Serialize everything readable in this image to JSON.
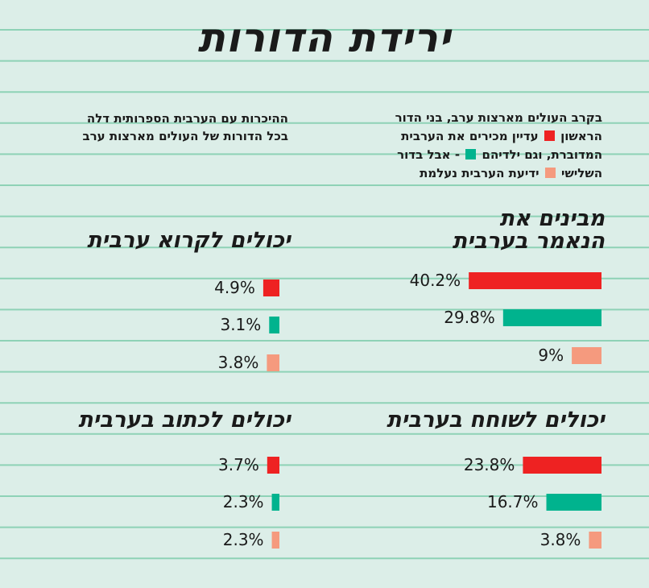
{
  "title": "ירידת הדורות",
  "description_right": {
    "line1": "בקרב העולים מארצות ערב, בני הדור",
    "line2a": "הראשון",
    "line2b": "עדיין מכירים את הערבית",
    "line3a": "המדוברת, וגם ילדיהם",
    "line3b": "- אבל בדור",
    "line4a": "השלישי",
    "line4b": "ידיעת הערבית נעלמת"
  },
  "description_left": {
    "line1": "ההיכרות עם הערבית הספרותית דלה",
    "line2": "בכל הדורות של העולים מארצות ערב"
  },
  "colors": {
    "background": "#dceee8",
    "gridline": "#8ed2b6",
    "first_generation": "#ee2222",
    "second_generation": "#00b38e",
    "third_generation": "#f59a7e"
  },
  "chart_data": [
    {
      "type": "bar",
      "title_line1": "מבינים את",
      "title_line2": "הנאמר בערבית",
      "values": [
        40.2,
        29.8,
        9
      ],
      "labels": [
        "40.2%",
        "29.8%",
        "9%"
      ]
    },
    {
      "type": "bar",
      "title_line1": "יכולים לקרוא ערבית",
      "title_line2": "",
      "values": [
        4.9,
        3.1,
        3.8
      ],
      "labels": [
        "4.9%",
        "3.1%",
        "3.8%"
      ]
    },
    {
      "type": "bar",
      "title_line1": "יכולים לשוחח בערבית",
      "title_line2": "",
      "values": [
        23.8,
        16.7,
        3.8
      ],
      "labels": [
        "23.8%",
        "16.7%",
        "3.8%"
      ]
    },
    {
      "type": "bar",
      "title_line1": "יכולים לכתוב בערבית",
      "title_line2": "",
      "values": [
        3.7,
        2.3,
        2.3
      ],
      "labels": [
        "3.7%",
        "2.3%",
        "2.3%"
      ]
    }
  ]
}
